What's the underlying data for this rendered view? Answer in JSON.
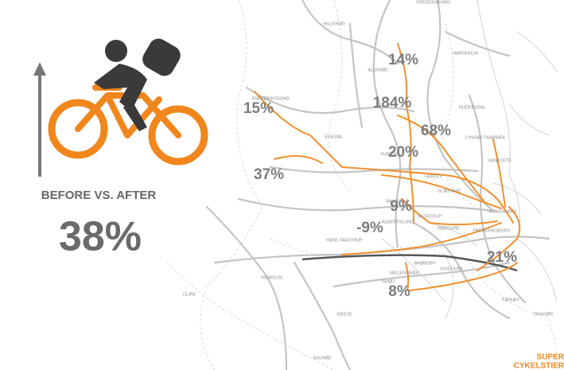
{
  "headline": {
    "label": "BEFORE VS. AFTER",
    "value": "38%"
  },
  "route_changes": [
    "14%",
    "184%",
    "15%",
    "68%",
    "20%",
    "37%",
    "9%",
    "-9%",
    "21%",
    "8%"
  ],
  "places": [
    "FREDENSBORG",
    "HILLERØD",
    "ALLERØD",
    "HØRSHOLM",
    "RUDERSDAL",
    "FREDERIKSSUND",
    "EGEDAL",
    "LYNGBY-TAARBÆK",
    "GENTOFTE",
    "FURESØ",
    "HERLEV",
    "GLADSAXE",
    "BALLERUP",
    "ALBERTSLUND",
    "GLOSTRUP",
    "RØDOVRE",
    "FREDERIKSBERG",
    "KØBENHAVN",
    "HØJE-TAASTRUP",
    "BRØNDBY",
    "HVIDOVRE",
    "VALLENSBÆK",
    "ISHØJ",
    "ROSKILDE",
    "LEJRE",
    "GREVE",
    "SOLRØD",
    "TÅRNBY",
    "DRAGØR"
  ],
  "logo": [
    "SUPER",
    "CYKELSTIER"
  ]
}
